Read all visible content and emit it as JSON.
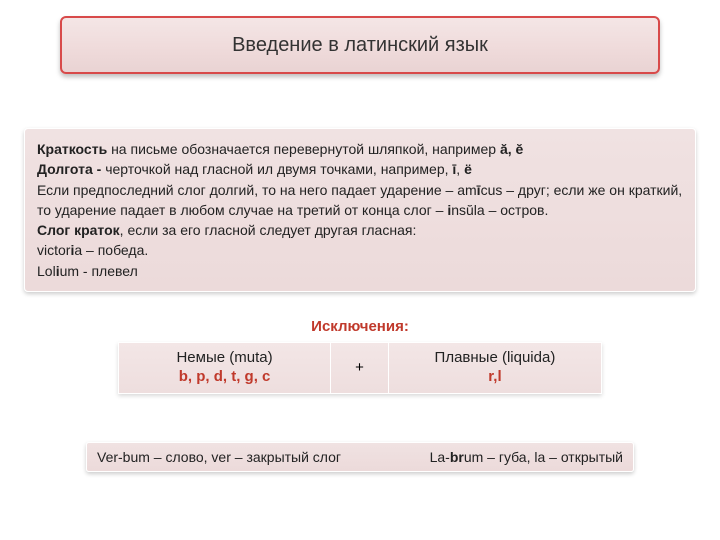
{
  "title": "Введение в латинский язык",
  "main": {
    "l1a": "Краткость",
    "l1b": " на письме обозначается перевернутой шляпкой, например ",
    "l1c": "ă, ĕ",
    "l2a": "Долгота - ",
    "l2b": "черточкой над гласной ил двумя точками, например, ",
    "l2c": "ī",
    "l2d": ", ",
    "l2e": "ё",
    "l3a": "Если предпоследний слог долгий, то на него падает ударение – am",
    "l3b": "ī",
    "l3c": "cus – друг; если же он краткий, то ударение падает в любом случае на третий от конца слог – ",
    "l3d": "i",
    "l3e": "nsŭla – остров.",
    "l4a": "Слог краток",
    "l4b": ", если за его гласной следует другая гласная:",
    "l5a": "victor",
    "l5b": "i",
    "l5c": "a – победа.",
    "l6a": "Lol",
    "l6b": "i",
    "l6c": "um - плевел"
  },
  "exceptions_label": "Исключения:",
  "table": {
    "left_line1": "Немые (muta)",
    "left_line2": "b, p, d, t, g, c",
    "mid": "+",
    "right_line1": "Плавные (liquida)",
    "right_line2": "r,l"
  },
  "bottom": {
    "left_a": "Ver-bum – слово, ver – закрытый слог",
    "right_a": "La-",
    "right_b": "br",
    "right_c": "um – губа, la – открытый"
  },
  "colors": {
    "title_border": "#d84a4a",
    "accent_red": "#c0392b",
    "box_bg_top": "#f3e6e6",
    "box_bg_bottom": "#ecdada",
    "text": "#222222"
  }
}
